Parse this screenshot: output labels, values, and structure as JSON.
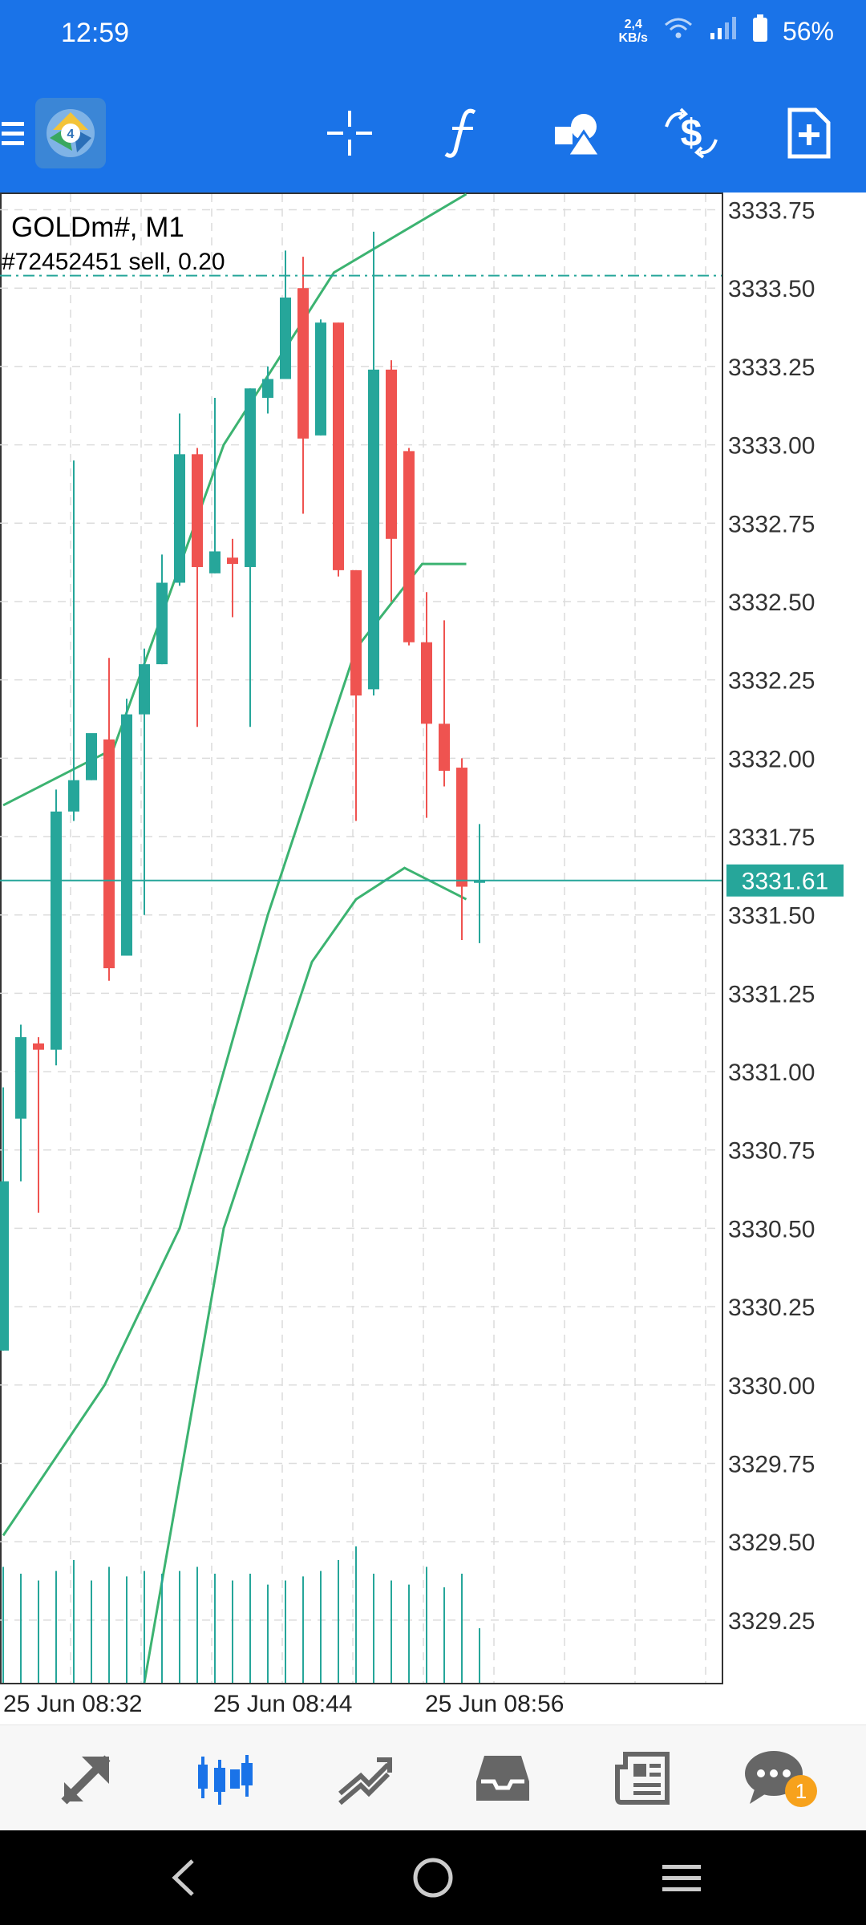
{
  "status_bar": {
    "time": "12:59",
    "net_speed_value": "2,4",
    "net_speed_unit": "KB/s",
    "battery": "56%",
    "icons": [
      "wifi-icon",
      "signal-icon",
      "battery-icon"
    ]
  },
  "toolbar": {
    "app_icon": "metatrader-logo",
    "icons": [
      "menu-icon",
      "crosshair-icon",
      "indicators-icon",
      "objects-icon",
      "symbol-dollar-icon",
      "new-order-icon"
    ]
  },
  "chart": {
    "symbol": "GOLDm#, M1",
    "order_label": "#72452451 sell, 0.20",
    "current_price": "3331.61",
    "colors": {
      "bull": "#26a69a",
      "bear": "#ef5350",
      "bands": "#3cb371",
      "accent": "#1a73e8",
      "grid": "#dcdcdc",
      "price_line": "#26a69a"
    }
  },
  "chart_data": {
    "type": "candlestick",
    "ylim": [
      3329.05,
      3333.8
    ],
    "y_ticks": [
      "3333.75",
      "3333.50",
      "3333.25",
      "3333.00",
      "3332.75",
      "3332.50",
      "3332.25",
      "3332.00",
      "3331.75",
      "3331.50",
      "3331.25",
      "3331.00",
      "3330.75",
      "3330.50",
      "3330.25",
      "3330.00",
      "3329.75",
      "3329.50",
      "3329.25"
    ],
    "x_labels": [
      "25 Jun 08:32",
      "25 Jun 08:44",
      "25 Jun 08:56"
    ],
    "current_price": 3331.61,
    "order_price": 3333.54,
    "candles": [
      {
        "o": 3330.11,
        "h": 3330.95,
        "l": 3330.11,
        "c": 3330.65
      },
      {
        "o": 3330.85,
        "h": 3331.15,
        "l": 3330.65,
        "c": 3331.11
      },
      {
        "o": 3331.09,
        "h": 3331.11,
        "l": 3330.55,
        "c": 3331.07
      },
      {
        "o": 3331.07,
        "h": 3331.9,
        "l": 3331.02,
        "c": 3331.83
      },
      {
        "o": 3331.83,
        "h": 3332.95,
        "l": 3331.8,
        "c": 3331.93
      },
      {
        "o": 3331.93,
        "h": 3332.06,
        "l": 3331.93,
        "c": 3332.08
      },
      {
        "o": 3332.06,
        "h": 3332.32,
        "l": 3331.29,
        "c": 3331.33
      },
      {
        "o": 3331.37,
        "h": 3332.19,
        "l": 3331.37,
        "c": 3332.14
      },
      {
        "o": 3332.14,
        "h": 3332.35,
        "l": 3331.5,
        "c": 3332.3
      },
      {
        "o": 3332.3,
        "h": 3332.65,
        "l": 3332.3,
        "c": 3332.56
      },
      {
        "o": 3332.56,
        "h": 3333.1,
        "l": 3332.55,
        "c": 3332.97
      },
      {
        "o": 3332.97,
        "h": 3332.99,
        "l": 3332.1,
        "c": 3332.61
      },
      {
        "o": 3332.59,
        "h": 3333.15,
        "l": 3332.59,
        "c": 3332.66
      },
      {
        "o": 3332.64,
        "h": 3332.7,
        "l": 3332.45,
        "c": 3332.62
      },
      {
        "o": 3332.61,
        "h": 3333.18,
        "l": 3332.1,
        "c": 3333.18
      },
      {
        "o": 3333.15,
        "h": 3333.25,
        "l": 3333.1,
        "c": 3333.21
      },
      {
        "o": 3333.21,
        "h": 3333.62,
        "l": 3333.21,
        "c": 3333.47
      },
      {
        "o": 3333.5,
        "h": 3333.6,
        "l": 3332.78,
        "c": 3333.02
      },
      {
        "o": 3333.03,
        "h": 3333.4,
        "l": 3333.03,
        "c": 3333.39
      },
      {
        "o": 3333.39,
        "h": 3333.39,
        "l": 3332.58,
        "c": 3332.6
      },
      {
        "o": 3332.6,
        "h": 3332.6,
        "l": 3331.8,
        "c": 3332.2
      },
      {
        "o": 3332.22,
        "h": 3333.68,
        "l": 3332.2,
        "c": 3333.24
      },
      {
        "o": 3333.24,
        "h": 3333.27,
        "l": 3332.5,
        "c": 3332.7
      },
      {
        "o": 3332.98,
        "h": 3332.99,
        "l": 3332.36,
        "c": 3332.37
      },
      {
        "o": 3332.37,
        "h": 3332.53,
        "l": 3331.81,
        "c": 3332.11
      },
      {
        "o": 3332.11,
        "h": 3332.44,
        "l": 3331.91,
        "c": 3331.96
      },
      {
        "o": 3331.97,
        "h": 3332.0,
        "l": 3331.42,
        "c": 3331.59
      },
      {
        "o": 3331.61,
        "h": 3331.79,
        "l": 3331.41,
        "c": 3331.61
      }
    ],
    "volumes": [
      0.85,
      0.8,
      0.75,
      0.82,
      0.9,
      0.75,
      0.85,
      0.78,
      0.82,
      0.8,
      0.82,
      0.85,
      0.8,
      0.75,
      0.8,
      0.72,
      0.75,
      0.78,
      0.82,
      0.9,
      1.0,
      0.8,
      0.75,
      0.72,
      0.85,
      0.7,
      0.8,
      0.4
    ],
    "bands": {
      "upper": [
        [
          0,
          3331.85
        ],
        [
          25,
          3332.03
        ],
        [
          50,
          3333.0
        ],
        [
          75,
          3333.55
        ],
        [
          105,
          3333.8
        ]
      ],
      "middle": [
        [
          0,
          3329.52
        ],
        [
          23,
          3330.0
        ],
        [
          40,
          3330.5
        ],
        [
          60,
          3331.5
        ],
        [
          80,
          3332.35
        ],
        [
          95,
          3332.62
        ],
        [
          105,
          3332.62
        ]
      ],
      "lower": [
        [
          32,
          3329.05
        ],
        [
          50,
          3330.5
        ],
        [
          70,
          3331.35
        ],
        [
          80,
          3331.55
        ],
        [
          91,
          3331.65
        ],
        [
          105,
          3331.55
        ]
      ]
    }
  },
  "bottom_nav": {
    "icons": [
      "trade-icon",
      "chart-icon",
      "history-icon",
      "inbox-icon",
      "news-icon",
      "chat-icon"
    ],
    "chat_badge": "1"
  },
  "system_nav": {
    "icons": [
      "back-icon",
      "home-icon",
      "recents-icon"
    ]
  }
}
